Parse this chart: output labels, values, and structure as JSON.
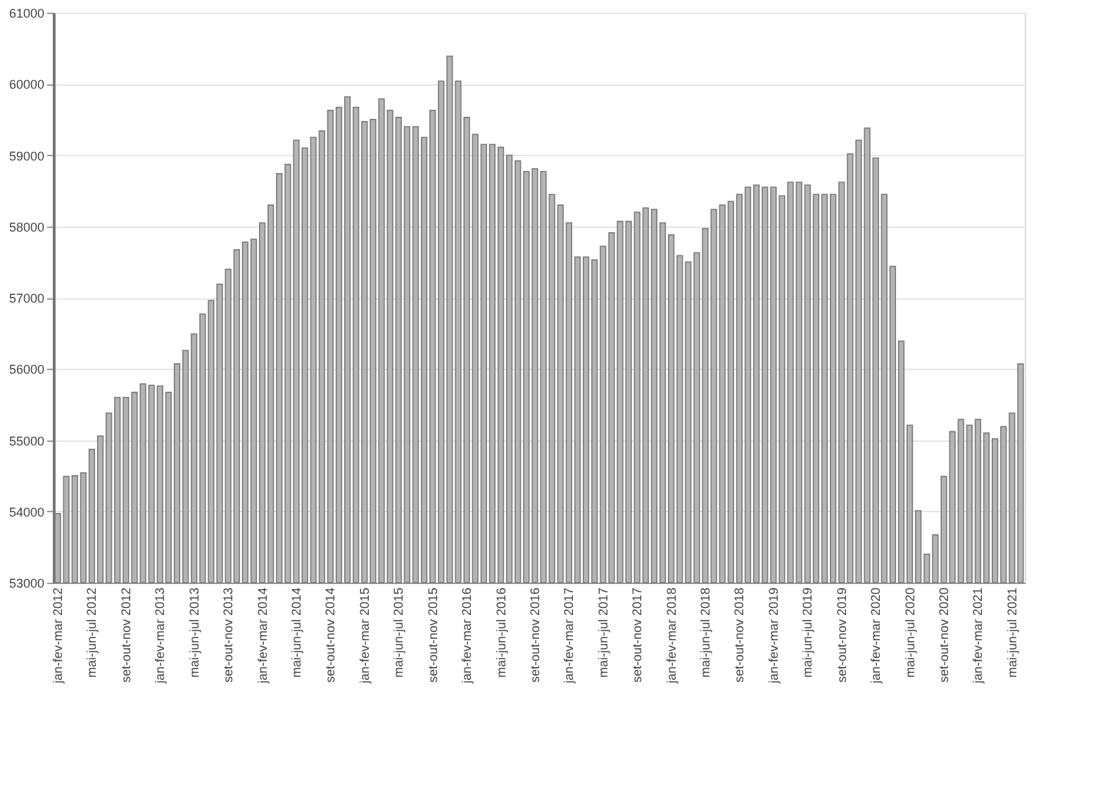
{
  "chart_data": {
    "type": "bar",
    "categories": [
      "jan-fev-mar 2012",
      null,
      null,
      null,
      "mai-jun-jul 2012",
      null,
      null,
      null,
      "set-out-nov 2012",
      null,
      null,
      null,
      "jan-fev-mar 2013",
      null,
      null,
      null,
      "mai-jun-jul 2013",
      null,
      null,
      null,
      "set-out-nov 2013",
      null,
      null,
      null,
      "jan-fev-mar 2014",
      null,
      null,
      null,
      "mai-jun-jul 2014",
      null,
      null,
      null,
      "set-out-nov 2014",
      null,
      null,
      null,
      "jan-fev-mar 2015",
      null,
      null,
      null,
      "mai-jun-jul 2015",
      null,
      null,
      null,
      "set-out-nov 2015",
      null,
      null,
      null,
      "jan-fev-mar 2016",
      null,
      null,
      null,
      "mai-jun-jul 2016",
      null,
      null,
      null,
      "set-out-nov 2016",
      null,
      null,
      null,
      "jan-fev-mar 2017",
      null,
      null,
      null,
      "mai-jun-jul 2017",
      null,
      null,
      null,
      "set-out-nov 2017",
      null,
      null,
      null,
      "jan-fev-mar 2018",
      null,
      null,
      null,
      "mai-jun-jul 2018",
      null,
      null,
      null,
      "set-out-nov 2018",
      null,
      null,
      null,
      "jan-fev-mar 2019",
      null,
      null,
      null,
      "mai-jun-jul 2019",
      null,
      null,
      null,
      "set-out-nov 2019",
      null,
      null,
      null,
      "jan-fev-mar 2020",
      null,
      null,
      null,
      "mai-jun-jul 2020",
      null,
      null,
      null,
      "set-out-nov 2020",
      null,
      null,
      null,
      "jan-fev-mar 2021",
      null,
      null,
      null,
      "mai-jun-jul 2021",
      null
    ],
    "values": [
      53970,
      54490,
      54500,
      54540,
      54870,
      55060,
      55380,
      55600,
      55600,
      55670,
      55790,
      55770,
      55760,
      55670,
      56070,
      56260,
      56490,
      56770,
      56960,
      57190,
      57400,
      57670,
      57780,
      57820,
      58050,
      58300,
      58740,
      58870,
      59210,
      59100,
      59250,
      59340,
      59630,
      59670,
      59820,
      59670,
      59470,
      59500,
      59790,
      59630,
      59530,
      59400,
      59400,
      59250,
      59630,
      60040,
      60390,
      60040,
      59530,
      59290,
      59150,
      59150,
      59110,
      59000,
      58920,
      58770,
      58810,
      58770,
      58450,
      58300,
      58050,
      57570,
      57570,
      57530,
      57720,
      57910,
      58070,
      58070,
      58200,
      58260,
      58240,
      58050,
      57880,
      57590,
      57500,
      57630,
      57970,
      58240,
      58300,
      58350,
      58450,
      58550,
      58580,
      58550,
      58550,
      58430,
      58620,
      58620,
      58580,
      58450,
      58450,
      58450,
      58620,
      59020,
      59210,
      59380,
      58960,
      58450,
      57440,
      56390,
      55210,
      54010,
      53400,
      53670,
      54490,
      55120,
      55290,
      55210,
      55290,
      55100,
      55020,
      55190,
      55380,
      56070
    ],
    "color": "#b4b4b4",
    "ylim": [
      53000,
      61000
    ],
    "yticks": [
      53000,
      54000,
      55000,
      56000,
      57000,
      58000,
      59000,
      60000,
      61000
    ],
    "grid": "y"
  }
}
